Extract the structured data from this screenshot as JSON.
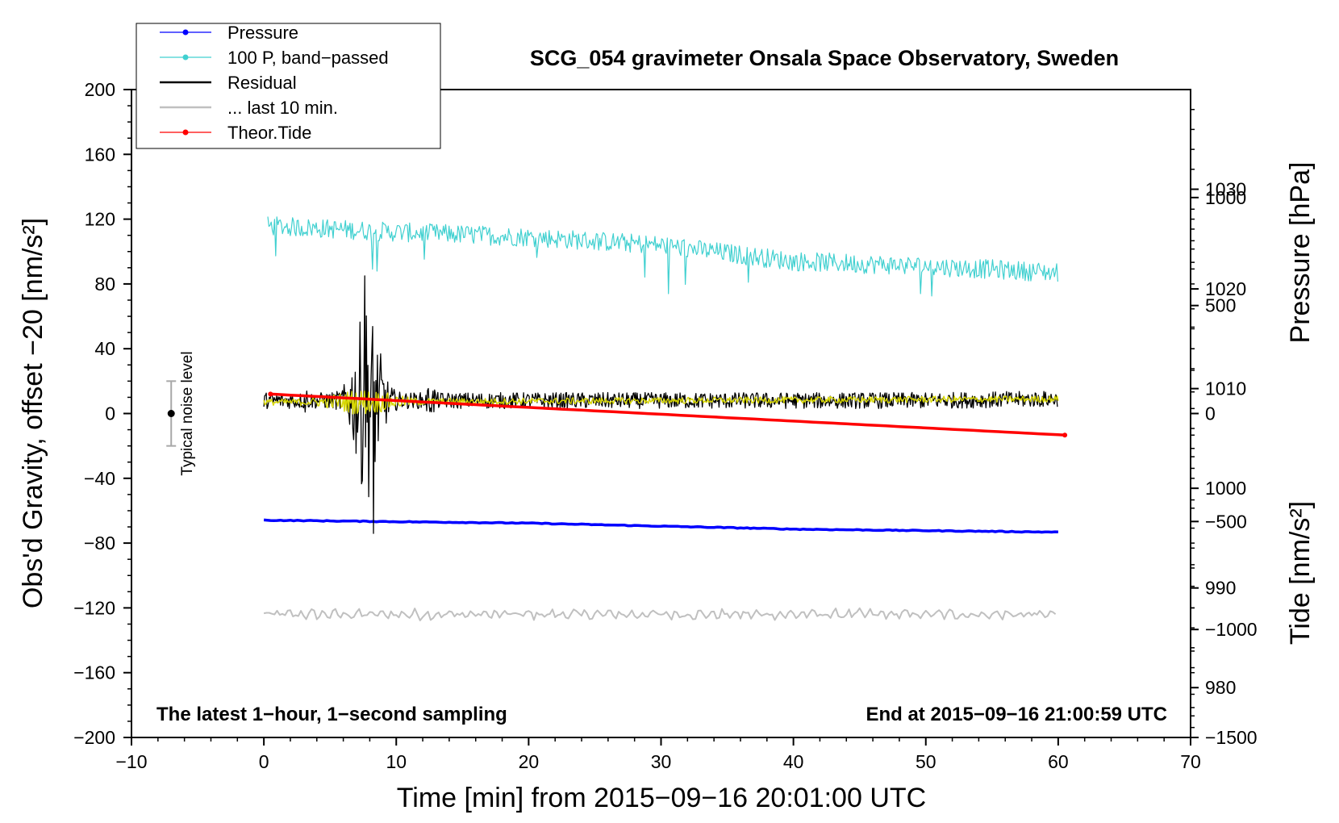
{
  "chart_data": {
    "type": "line",
    "title": "SCG_054 gravimeter Onsala Space Observatory, Sweden",
    "xlabel": "Time [min] from 2015−09−16 20:01:00 UTC",
    "ylabel_left": "Obs'd Gravity, offset −20 [nm/s²]",
    "ylabel_right_top": "Pressure [hPa]",
    "ylabel_right_bottom": "Tide [nm/s²]",
    "xlim": [
      -10,
      70
    ],
    "ylim": [
      -200,
      200
    ],
    "pressure_axis": [
      975,
      1040
    ],
    "tide_axis": [
      -1500,
      1500
    ],
    "x_ticks": [
      -10,
      0,
      10,
      20,
      30,
      40,
      50,
      60,
      70
    ],
    "x_tick_labels": [
      "−10",
      "0",
      "10",
      "20",
      "30",
      "40",
      "50",
      "60",
      "70"
    ],
    "y_ticks": [
      -200,
      -160,
      -120,
      -80,
      -40,
      0,
      40,
      80,
      120,
      160,
      200
    ],
    "y_tick_labels": [
      "−200",
      "−160",
      "−120",
      "−80",
      "−40",
      "0",
      "40",
      "80",
      "120",
      "160",
      "200"
    ],
    "pressure_ticks": [
      980,
      990,
      1000,
      1010,
      1020,
      1030
    ],
    "pressure_tick_labels": [
      "980",
      "990",
      "1000",
      "1010",
      "1020",
      "1030"
    ],
    "tide_ticks": [
      -1500,
      -1000,
      -500,
      0,
      500,
      1000
    ],
    "tide_tick_labels": [
      "−1500",
      "−1000",
      "−500",
      "0",
      "500",
      "1000"
    ],
    "annotations": {
      "left": "The latest 1−hour, 1−second sampling",
      "right": "End at 2015−09−16 21:00:59 UTC"
    },
    "noise_marker": {
      "x": -7,
      "y": 0,
      "low": -20,
      "high": 20,
      "label": "Typical noise level"
    },
    "legend": [
      {
        "label": "Pressure",
        "color": "#0000ff",
        "marker": true
      },
      {
        "label": "100 P, band−passed",
        "color": "#40d0d0",
        "marker": true
      },
      {
        "label": "Residual",
        "color": "#000000",
        "marker": false
      },
      {
        "label": "... last 10 min.",
        "color": "#c0c0c0",
        "marker": false
      },
      {
        "label": "Theor.Tide",
        "color": "#ff0000",
        "marker": true
      }
    ],
    "series": [
      {
        "name": "Pressure",
        "color": "#0000ff",
        "axis": "pressure",
        "x": [
          0,
          20,
          40,
          60
        ],
        "values": [
          996.8,
          996.5,
          995.9,
          995.6
        ]
      },
      {
        "name": "100 P, band−passed",
        "color": "#40d0d0",
        "axis": "left",
        "x": [
          0,
          10,
          20,
          30,
          40,
          50,
          60
        ],
        "values": [
          116,
          112,
          109,
          104,
          94,
          91,
          87
        ],
        "noise_amplitude": 6
      },
      {
        "name": "Residual",
        "color": "#000000",
        "axis": "left",
        "x": [
          0,
          10,
          20,
          30,
          40,
          50,
          60
        ],
        "values": [
          8,
          8,
          8,
          8,
          8,
          8,
          9
        ],
        "noise_amplitude": 5,
        "burst": {
          "center": 7.8,
          "width": 2.5,
          "peak": 85,
          "trough": -74
        }
      },
      {
        "name": "Residual (smoothed)",
        "color": "#d7d700",
        "axis": "left",
        "x": [
          0,
          60
        ],
        "values": [
          7,
          9
        ],
        "noise_amplitude": 2
      },
      {
        "name": "... last 10 min.",
        "color": "#c0c0c0",
        "axis": "left",
        "x": [
          0,
          60
        ],
        "values": [
          -124,
          -124
        ],
        "noise_amplitude": 3
      },
      {
        "name": "Theor.Tide",
        "color": "#ff0000",
        "axis": "tide",
        "x": [
          0.5,
          60.5
        ],
        "values": [
          90,
          -100
        ]
      }
    ]
  }
}
